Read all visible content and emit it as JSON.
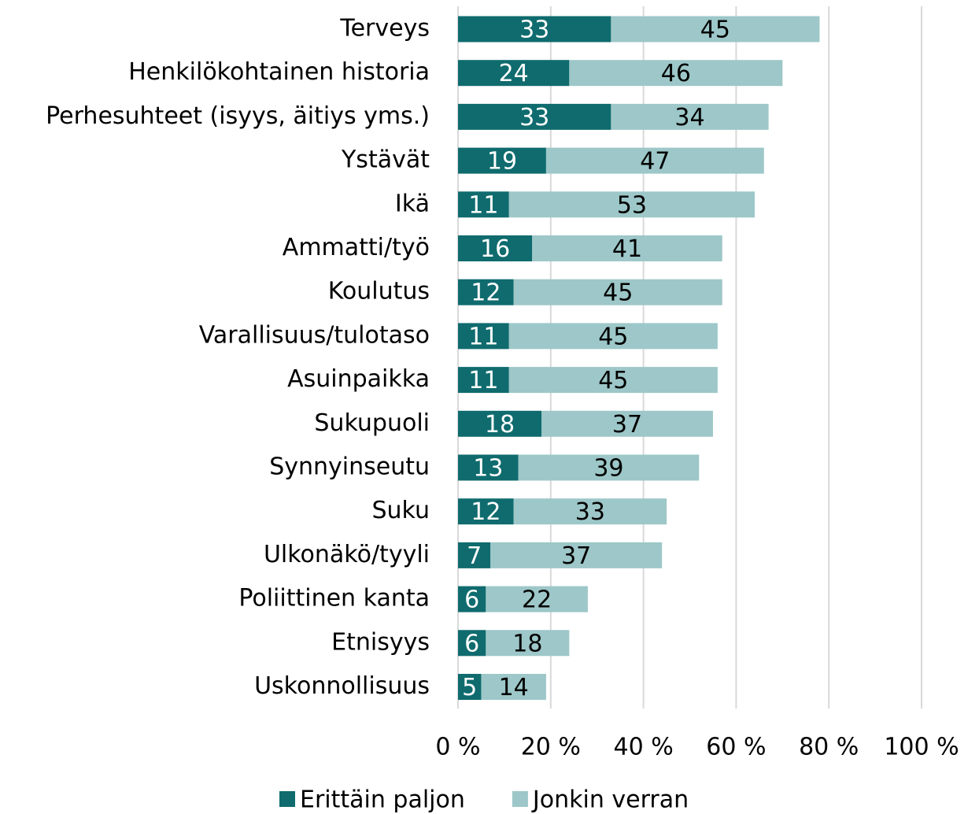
{
  "chart_data": {
    "type": "stacked_barh",
    "categories": [
      "Terveys",
      "Henkilökohtainen historia",
      "Perhesuhteet (isyys, äitiys yms.)",
      "Ystävät",
      "Ikä",
      "Ammatti/työ",
      "Koulutus",
      "Varallisuus/tulotaso",
      "Asuinpaikka",
      "Sukupuoli",
      "Synnyinseutu",
      "Suku",
      "Ulkonäkö/tyyli",
      "Poliittinen kanta",
      "Etnisyys",
      "Uskonnollisuus"
    ],
    "series": [
      {
        "name": "Erittäin paljon",
        "color": "#0f6b6e",
        "values": [
          33,
          24,
          33,
          19,
          11,
          16,
          12,
          11,
          11,
          18,
          13,
          12,
          7,
          6,
          6,
          5
        ]
      },
      {
        "name": "Jonkin verran",
        "color": "#9dc7c8",
        "values": [
          45,
          46,
          34,
          47,
          53,
          41,
          45,
          45,
          45,
          37,
          39,
          33,
          37,
          22,
          18,
          14
        ]
      }
    ],
    "xlim": [
      0,
      100
    ],
    "xticks": [
      {
        "value": 0,
        "label": "0 %"
      },
      {
        "value": 20,
        "label": "20 %"
      },
      {
        "value": 40,
        "label": "40 %"
      },
      {
        "value": 60,
        "label": "60 %"
      },
      {
        "value": 80,
        "label": "80 %"
      },
      {
        "value": 100,
        "label": "100 %"
      }
    ],
    "grid": true,
    "legend": "bottom"
  }
}
